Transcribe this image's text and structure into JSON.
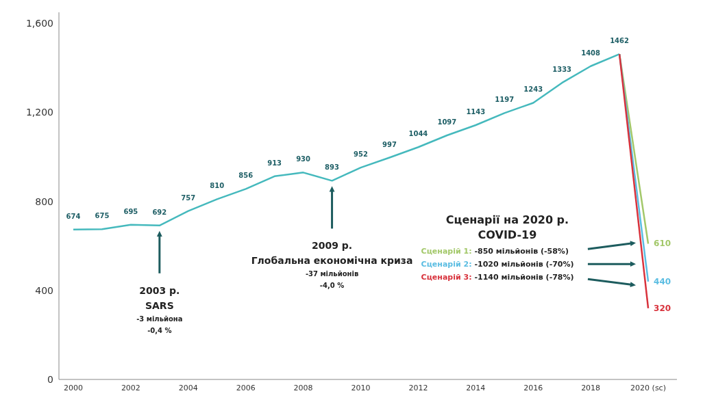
{
  "chart_data": {
    "type": "line",
    "xlim": [
      1999.5,
      2021
    ],
    "xticks": [
      2000,
      2002,
      2004,
      2006,
      2008,
      2010,
      2012,
      2014,
      2016,
      2018,
      {
        "value": 2020,
        "label": "2020 (sc)"
      }
    ],
    "ylim": [
      0,
      1650
    ],
    "yticks": [
      0,
      400,
      800,
      {
        "value": 1200,
        "label": "1,200"
      },
      {
        "value": 1600,
        "label": "1,600"
      }
    ],
    "series": [
      {
        "color": "#45b9bd",
        "x": [
          2000,
          2001,
          2002,
          2003,
          2004,
          2005,
          2006,
          2007,
          2008,
          2009,
          2010,
          2011,
          2012,
          2013,
          2014,
          2015,
          2016,
          2017,
          2018,
          2019
        ],
        "values": [
          674,
          675,
          695,
          692,
          757,
          810,
          856,
          913,
          930,
          893,
          952,
          997,
          1044,
          1097,
          1143,
          1197,
          1243,
          1333,
          1408,
          1462
        ],
        "value_labels": [
          "674",
          "675",
          "695",
          "692",
          "757",
          "810",
          "856",
          "913",
          "930",
          "893",
          "952",
          "997",
          "1044",
          "1097",
          "1143",
          "1197",
          "1243",
          "1333",
          "1408",
          "1462"
        ]
      },
      {
        "name": "Сценарій 1:",
        "color": "#a3c86a",
        "x": [
          2019,
          2020
        ],
        "values": [
          1462,
          610
        ],
        "value_labels": [
          null,
          "610"
        ]
      },
      {
        "name": "Сценарій 2:",
        "color": "#5bbde2",
        "x": [
          2019,
          2020
        ],
        "values": [
          1462,
          440
        ],
        "value_labels": [
          null,
          "440"
        ]
      },
      {
        "name": "Сценарій 3:",
        "color": "#d8323c",
        "x": [
          2019,
          2020
        ],
        "values": [
          1462,
          320
        ],
        "value_labels": [
          null,
          "320"
        ]
      }
    ],
    "annotations": [
      "2003 р.\nSARS\n-3 мільйона\n-0,4 %",
      "2009 р.\nГлобальна економічна криза\n-37 мільйонів\n-4,0 %",
      "Сценарії на 2020 р.\nCOVID-19",
      "-850 мільйонів (-58%)",
      "-1020 мільйонів (-70%)",
      "-1140 мільйонів (-78%)"
    ]
  }
}
